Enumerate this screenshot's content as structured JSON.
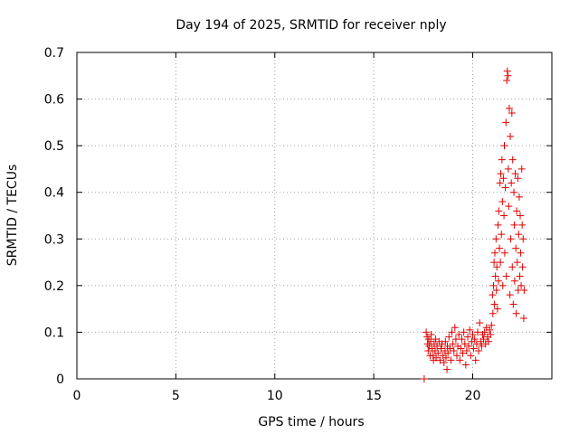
{
  "chart_data": {
    "type": "scatter",
    "title": "Day 194 of 2025, SRMTID for receiver nply",
    "xlabel": "GPS time / hours",
    "ylabel": "SRMTID / TECUs",
    "xlim": [
      0,
      24
    ],
    "ylim": [
      0,
      0.7
    ],
    "xticks": [
      0,
      5,
      10,
      15,
      20
    ],
    "yticks": [
      0,
      0.1,
      0.2,
      0.3,
      0.4,
      0.5,
      0.6,
      0.7
    ],
    "xtick_labels": [
      "0",
      "5",
      "10",
      "15",
      "20"
    ],
    "ytick_labels": [
      "0",
      "0.1",
      "0.2",
      "0.3",
      "0.4",
      "0.5",
      "0.6",
      "0.7"
    ],
    "grid": true,
    "marker": "plus",
    "color": "#e00000",
    "series": [
      {
        "name": "SRMTID",
        "points": [
          [
            17.55,
            0.0
          ],
          [
            17.65,
            0.1
          ],
          [
            17.7,
            0.09
          ],
          [
            17.72,
            0.075
          ],
          [
            17.75,
            0.06
          ],
          [
            17.78,
            0.085
          ],
          [
            17.8,
            0.07
          ],
          [
            17.85,
            0.05
          ],
          [
            17.88,
            0.08
          ],
          [
            17.9,
            0.095
          ],
          [
            17.95,
            0.065
          ],
          [
            18.0,
            0.05
          ],
          [
            18.02,
            0.04
          ],
          [
            18.05,
            0.075
          ],
          [
            18.1,
            0.06
          ],
          [
            18.12,
            0.085
          ],
          [
            18.15,
            0.045
          ],
          [
            18.2,
            0.07
          ],
          [
            18.25,
            0.055
          ],
          [
            18.3,
            0.08
          ],
          [
            18.35,
            0.04
          ],
          [
            18.4,
            0.065
          ],
          [
            18.45,
            0.075
          ],
          [
            18.5,
            0.05
          ],
          [
            18.55,
            0.035
          ],
          [
            18.6,
            0.06
          ],
          [
            18.62,
            0.08
          ],
          [
            18.65,
            0.045
          ],
          [
            18.7,
            0.02
          ],
          [
            18.72,
            0.07
          ],
          [
            18.75,
            0.055
          ],
          [
            18.8,
            0.09
          ],
          [
            18.85,
            0.065
          ],
          [
            18.9,
            0.04
          ],
          [
            18.95,
            0.1
          ],
          [
            19.0,
            0.075
          ],
          [
            19.05,
            0.06
          ],
          [
            19.1,
            0.11
          ],
          [
            19.15,
            0.085
          ],
          [
            19.2,
            0.05
          ],
          [
            19.25,
            0.07
          ],
          [
            19.3,
            0.095
          ],
          [
            19.35,
            0.04
          ],
          [
            19.4,
            0.065
          ],
          [
            19.45,
            0.085
          ],
          [
            19.5,
            0.055
          ],
          [
            19.55,
            0.1
          ],
          [
            19.6,
            0.075
          ],
          [
            19.65,
            0.03
          ],
          [
            19.7,
            0.06
          ],
          [
            19.75,
            0.09
          ],
          [
            19.8,
            0.07
          ],
          [
            19.85,
            0.105
          ],
          [
            19.9,
            0.05
          ],
          [
            19.95,
            0.08
          ],
          [
            20.0,
            0.095
          ],
          [
            20.05,
            0.065
          ],
          [
            20.1,
            0.085
          ],
          [
            20.15,
            0.04
          ],
          [
            20.2,
            0.075
          ],
          [
            20.25,
            0.1
          ],
          [
            20.3,
            0.06
          ],
          [
            20.35,
            0.12
          ],
          [
            20.4,
            0.08
          ],
          [
            20.45,
            0.07
          ],
          [
            20.5,
            0.095
          ],
          [
            20.55,
            0.085
          ],
          [
            20.6,
            0.1
          ],
          [
            20.65,
            0.075
          ],
          [
            20.7,
            0.11
          ],
          [
            20.75,
            0.09
          ],
          [
            20.8,
            0.08
          ],
          [
            20.85,
            0.105
          ],
          [
            20.9,
            0.095
          ],
          [
            20.95,
            0.115
          ],
          [
            21.0,
            0.18
          ],
          [
            21.02,
            0.14
          ],
          [
            21.05,
            0.2
          ],
          [
            21.08,
            0.25
          ],
          [
            21.1,
            0.16
          ],
          [
            21.12,
            0.27
          ],
          [
            21.15,
            0.22
          ],
          [
            21.18,
            0.3
          ],
          [
            21.2,
            0.19
          ],
          [
            21.22,
            0.24
          ],
          [
            21.25,
            0.15
          ],
          [
            21.28,
            0.33
          ],
          [
            21.3,
            0.21
          ],
          [
            21.32,
            0.36
          ],
          [
            21.35,
            0.28
          ],
          [
            21.38,
            0.42
          ],
          [
            21.4,
            0.25
          ],
          [
            21.42,
            0.44
          ],
          [
            21.45,
            0.31
          ],
          [
            21.48,
            0.47
          ],
          [
            21.5,
            0.38
          ],
          [
            21.52,
            0.2
          ],
          [
            21.55,
            0.43
          ],
          [
            21.58,
            0.35
          ],
          [
            21.6,
            0.5
          ],
          [
            21.62,
            0.27
          ],
          [
            21.65,
            0.41
          ],
          [
            21.68,
            0.55
          ],
          [
            21.7,
            0.22
          ],
          [
            21.72,
            0.64
          ],
          [
            21.75,
            0.66
          ],
          [
            21.78,
            0.65
          ],
          [
            21.8,
            0.45
          ],
          [
            21.82,
            0.37
          ],
          [
            21.85,
            0.58
          ],
          [
            21.88,
            0.18
          ],
          [
            21.9,
            0.52
          ],
          [
            21.92,
            0.3
          ],
          [
            21.95,
            0.42
          ],
          [
            21.98,
            0.57
          ],
          [
            22.0,
            0.24
          ],
          [
            22.02,
            0.47
          ],
          [
            22.05,
            0.16
          ],
          [
            22.08,
            0.4
          ],
          [
            22.1,
            0.33
          ],
          [
            22.12,
            0.21
          ],
          [
            22.15,
            0.44
          ],
          [
            22.18,
            0.28
          ],
          [
            22.2,
            0.14
          ],
          [
            22.22,
            0.36
          ],
          [
            22.25,
            0.25
          ],
          [
            22.28,
            0.43
          ],
          [
            22.3,
            0.19
          ],
          [
            22.32,
            0.31
          ],
          [
            22.35,
            0.39
          ],
          [
            22.38,
            0.22
          ],
          [
            22.4,
            0.35
          ],
          [
            22.42,
            0.27
          ],
          [
            22.45,
            0.2
          ],
          [
            22.48,
            0.45
          ],
          [
            22.5,
            0.33
          ],
          [
            22.52,
            0.24
          ],
          [
            22.55,
            0.3
          ],
          [
            22.58,
            0.13
          ],
          [
            22.6,
            0.19
          ]
        ]
      }
    ]
  }
}
